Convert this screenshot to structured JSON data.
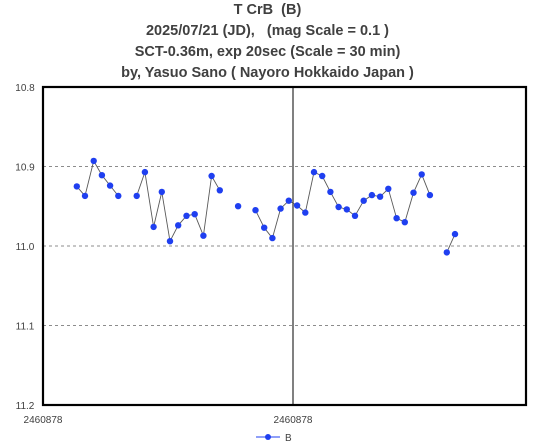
{
  "chart_data": {
    "type": "line",
    "title_lines": [
      "T CrB  (B)",
      "2025/07/21 (JD),   (mag Scale = 0.1 )",
      "SCT-0.36m, exp 20sec (Scale = 30 min)",
      "by, Yasuo Sano ( Nayoro Hokkaido Japan )"
    ],
    "y_ticks": [
      "10.8",
      "10.9",
      "11.0",
      "11.1",
      "11.2"
    ],
    "ylim": [
      10.8,
      11.2
    ],
    "y_inverted": true,
    "x_ticks": [
      "2460878",
      "2460878"
    ],
    "xlim": [
      0,
      1
    ],
    "grid": "horizontal dashed",
    "legend_position": "bottom-center",
    "legend": "B",
    "series": [
      {
        "name": "B",
        "color": "#1f3ff0",
        "segments": [
          [
            [
              0.07,
              10.925
            ],
            [
              0.087,
              10.937
            ],
            [
              0.105,
              10.893
            ],
            [
              0.122,
              10.911
            ],
            [
              0.139,
              10.924
            ],
            [
              0.156,
              10.937
            ]
          ],
          [
            [
              0.194,
              10.937
            ],
            [
              0.211,
              10.907
            ],
            [
              0.229,
              10.976
            ],
            [
              0.246,
              10.932
            ],
            [
              0.263,
              10.994
            ],
            [
              0.28,
              10.974
            ],
            [
              0.297,
              10.962
            ],
            [
              0.314,
              10.96
            ],
            [
              0.332,
              10.987
            ],
            [
              0.349,
              10.912
            ],
            [
              0.366,
              10.93
            ]
          ],
          [
            [
              0.404,
              10.95
            ]
          ],
          [
            [
              0.44,
              10.955
            ],
            [
              0.458,
              10.977
            ],
            [
              0.475,
              10.99
            ],
            [
              0.492,
              10.953
            ],
            [
              0.509,
              10.943
            ],
            [
              0.526,
              10.949
            ],
            [
              0.543,
              10.958
            ],
            [
              0.561,
              10.907
            ],
            [
              0.578,
              10.912
            ],
            [
              0.595,
              10.932
            ],
            [
              0.612,
              10.951
            ],
            [
              0.629,
              10.954
            ],
            [
              0.646,
              10.962
            ],
            [
              0.664,
              10.943
            ],
            [
              0.681,
              10.936
            ],
            [
              0.698,
              10.938
            ],
            [
              0.715,
              10.928
            ],
            [
              0.732,
              10.965
            ],
            [
              0.749,
              10.97
            ],
            [
              0.767,
              10.933
            ],
            [
              0.784,
              10.91
            ],
            [
              0.801,
              10.936
            ]
          ],
          [
            [
              0.836,
              11.008
            ],
            [
              0.853,
              10.985
            ]
          ]
        ]
      }
    ]
  }
}
